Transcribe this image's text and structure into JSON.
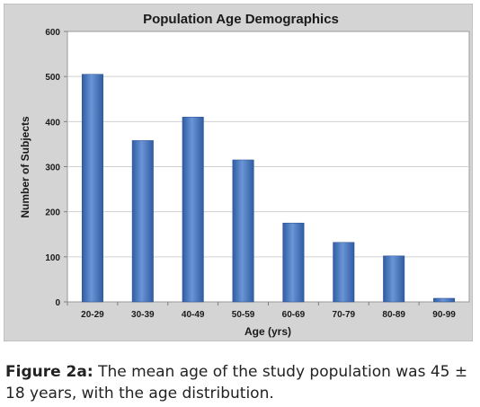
{
  "chart_data": {
    "type": "bar",
    "title": "Population Age Demographics",
    "xlabel": "Age (yrs)",
    "ylabel": "Number of Subjects",
    "categories": [
      "20-29",
      "30-39",
      "40-49",
      "50-59",
      "60-69",
      "70-79",
      "80-89",
      "90-99"
    ],
    "values": [
      505,
      358,
      410,
      315,
      175,
      132,
      102,
      8
    ],
    "ylim": [
      0,
      600
    ],
    "yticks": [
      0,
      100,
      200,
      300,
      400,
      500,
      600
    ],
    "grid": true,
    "legend": "none",
    "colors": {
      "bar_light": "#6a95d6",
      "bar_dark": "#2f5ca3",
      "plot_background": "#ffffff",
      "panel_background": "#d4d4d4",
      "gridline": "#d0d0d0"
    }
  },
  "caption": {
    "label": "Figure 2a:",
    "text": "The mean age of the study population was 45 ± 18 years, with the age distribution."
  }
}
